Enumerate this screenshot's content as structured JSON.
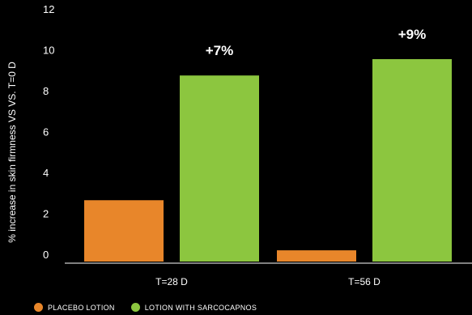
{
  "chart_data": {
    "type": "bar",
    "title": "",
    "xlabel": "",
    "ylabel": "% increase in skin firmness VS VS. T=0 D",
    "ylim": [
      0,
      12
    ],
    "yticks": [
      "0",
      "2",
      "4",
      "6",
      "8",
      "10",
      "12"
    ],
    "categories": [
      "T=28 D",
      "T=56 D"
    ],
    "series": [
      {
        "name": "PLACEBO LOTION",
        "color": "#e8862a",
        "values": [
          3,
          0.55
        ]
      },
      {
        "name": "LOTION WITH SARCOCAPNOS",
        "color": "#8cc63f",
        "values": [
          9.1,
          9.9
        ]
      }
    ],
    "annotations": [
      "+7%",
      "+9%"
    ],
    "legend_position": "bottom-left",
    "grid": false
  }
}
